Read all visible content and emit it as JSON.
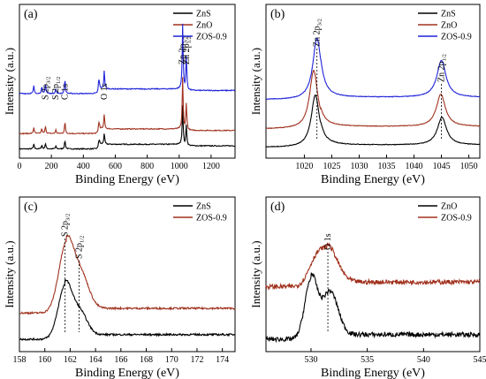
{
  "chart_data": [
    {
      "panel": "(a)",
      "type": "line",
      "xlabel": "Binding Energy (eV)",
      "ylabel": "Intensity (a.u.)",
      "xlim": [
        0,
        1350
      ],
      "x_ticks": [
        "0",
        "200",
        "400",
        "600",
        "800",
        "1000",
        "1200"
      ],
      "legend_position": "top-right",
      "series": [
        {
          "name": "ZnS",
          "color": "#000000",
          "baseline": 0.06,
          "offset": 0.0
        },
        {
          "name": "ZnO",
          "color": "#a0321e",
          "baseline": 0.16,
          "offset": 0.0
        },
        {
          "name": "ZOS-0.9",
          "color": "#1f23d8",
          "baseline": 0.42,
          "offset": 0.0
        }
      ],
      "peaks": [
        {
          "x": 90,
          "h": 0.05
        },
        {
          "x": 140,
          "h": 0.04
        },
        {
          "x": 163,
          "h": 0.06
        },
        {
          "x": 228,
          "h": 0.03
        },
        {
          "x": 285,
          "h": 0.09
        },
        {
          "x": 497,
          "h": 0.1
        },
        {
          "x": 531,
          "h": 0.12
        },
        {
          "x": 1022,
          "h": 0.42
        },
        {
          "x": 1045,
          "h": 0.22
        }
      ],
      "annotations": [
        {
          "text": "S 2p",
          "sub": "3/2",
          "x": 163
        },
        {
          "text": "S 2p",
          "sub": "1/2",
          "x": 228
        },
        {
          "text": "C 1s",
          "sub": "",
          "x": 285
        },
        {
          "text": "O 1s",
          "sub": "",
          "x": 531
        },
        {
          "text": "Zn 2p",
          "sub": "3/2",
          "x": 1022
        },
        {
          "text": "Zn 2p",
          "sub": "1/2",
          "x": 1045
        }
      ]
    },
    {
      "panel": "(b)",
      "type": "line",
      "xlabel": "Binding Energy (eV)",
      "ylabel": "Intensity (a.u.)",
      "xlim": [
        1013,
        1052
      ],
      "x_ticks": [
        "1020",
        "1025",
        "1030",
        "1035",
        "1040",
        "1045",
        "1050"
      ],
      "legend_position": "top-right",
      "series": [
        {
          "name": "ZnS",
          "color": "#000000",
          "baseline": 0.07,
          "peak1": {
            "x": 1022.0,
            "h": 0.34,
            "w": 0.9
          },
          "peak2": {
            "x": 1045.1,
            "h": 0.18,
            "w": 1.0
          }
        },
        {
          "name": "ZnO",
          "color": "#a0321e",
          "baseline": 0.19,
          "peak1": {
            "x": 1021.7,
            "h": 0.38,
            "w": 0.9
          },
          "peak2": {
            "x": 1044.9,
            "h": 0.21,
            "w": 1.0
          }
        },
        {
          "name": "ZOS-0.9",
          "color": "#1f23d8",
          "baseline": 0.38,
          "peak1": {
            "x": 1022.3,
            "h": 0.4,
            "w": 0.9
          },
          "peak2": {
            "x": 1045.0,
            "h": 0.24,
            "w": 1.0
          }
        }
      ],
      "annotations": [
        {
          "text": "Zn 2p",
          "sub": "3/2",
          "x": 1022.3
        },
        {
          "text": "Zn 2p",
          "sub": "1/2",
          "x": 1045.0
        }
      ]
    },
    {
      "panel": "(c)",
      "type": "line",
      "xlabel": "Binding Energy (eV)",
      "ylabel": "Intensity (a.u.)",
      "xlim": [
        158,
        175
      ],
      "x_ticks": [
        "158",
        "160",
        "162",
        "164",
        "166",
        "168",
        "170",
        "172",
        "174"
      ],
      "legend_position": "top-right",
      "series": [
        {
          "name": "ZnS",
          "color": "#000000",
          "baseline": 0.08,
          "peaks": [
            {
              "x": 161.6,
              "h": 0.34,
              "w": 0.55
            },
            {
              "x": 162.8,
              "h": 0.14,
              "w": 0.55
            }
          ]
        },
        {
          "name": "ZOS-0.9",
          "color": "#a0321e",
          "baseline": 0.25,
          "peaks": [
            {
              "x": 161.7,
              "h": 0.44,
              "w": 0.6
            },
            {
              "x": 162.9,
              "h": 0.2,
              "w": 0.6
            }
          ]
        }
      ],
      "annotations": [
        {
          "text": "S 2p",
          "sub": "3/2",
          "x": 161.6
        },
        {
          "text": "S 2p",
          "sub": "1/2",
          "x": 162.7
        }
      ]
    },
    {
      "panel": "(d)",
      "type": "line",
      "xlabel": "Binding Energy (eV)",
      "ylabel": "Intensity (a.u.)",
      "xlim": [
        526,
        545
      ],
      "x_ticks": [
        "530",
        "535",
        "540",
        "545"
      ],
      "legend_position": "top-right",
      "series": [
        {
          "name": "ZnO",
          "color": "#000000",
          "baseline": 0.08,
          "peaks": [
            {
              "x": 530.0,
              "h": 0.38,
              "w": 0.55
            },
            {
              "x": 531.7,
              "h": 0.28,
              "w": 0.7
            }
          ]
        },
        {
          "name": "ZOS-0.9",
          "color": "#a0321e",
          "baseline": 0.42,
          "peaks": [
            {
              "x": 531.4,
              "h": 0.24,
              "w": 0.9
            },
            {
              "x": 530.2,
              "h": 0.08,
              "w": 0.6
            }
          ]
        }
      ],
      "annotations": [
        {
          "text": "O 1s",
          "sub": "",
          "x": 531.5
        }
      ]
    }
  ]
}
